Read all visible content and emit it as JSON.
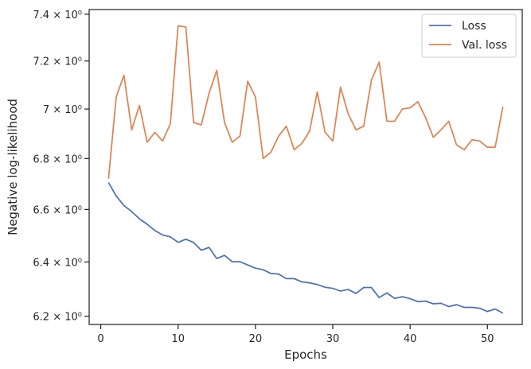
{
  "chart_data": {
    "type": "line",
    "xlabel": "Epochs",
    "ylabel": "Negative log-likelihood",
    "y_scale": "log",
    "xlim": [
      -1.5,
      54.5
    ],
    "ylim": [
      6.17,
      7.42
    ],
    "x_ticks": [
      0,
      10,
      20,
      30,
      40,
      50
    ],
    "y_ticks": [
      6.2,
      6.4,
      6.6,
      6.8,
      7.0,
      7.2,
      7.4
    ],
    "y_tick_labels": [
      "6.2 × 10⁰",
      "6.4 × 10⁰",
      "6.6 × 10⁰",
      "6.8 × 10⁰",
      "7 × 10⁰",
      "7.2 × 10⁰",
      "7.4 × 10⁰"
    ],
    "grid": false,
    "legend_position": "top-right",
    "x": [
      1,
      2,
      3,
      4,
      5,
      6,
      7,
      8,
      9,
      10,
      11,
      12,
      13,
      14,
      15,
      16,
      17,
      18,
      19,
      20,
      21,
      22,
      23,
      24,
      25,
      26,
      27,
      28,
      29,
      30,
      31,
      32,
      33,
      34,
      35,
      36,
      37,
      38,
      39,
      40,
      41,
      42,
      43,
      44,
      45,
      46,
      47,
      48,
      49,
      50,
      51,
      52
    ],
    "series": [
      {
        "name": "Loss",
        "color": "#4c72b0",
        "values": [
          6.705,
          6.652,
          6.615,
          6.592,
          6.564,
          6.543,
          6.519,
          6.502,
          6.495,
          6.474,
          6.486,
          6.474,
          6.444,
          6.455,
          6.413,
          6.425,
          6.401,
          6.401,
          6.389,
          6.377,
          6.371,
          6.357,
          6.355,
          6.338,
          6.338,
          6.326,
          6.322,
          6.316,
          6.306,
          6.302,
          6.292,
          6.298,
          6.283,
          6.305,
          6.305,
          6.268,
          6.285,
          6.265,
          6.271,
          6.264,
          6.253,
          6.255,
          6.245,
          6.247,
          6.235,
          6.242,
          6.232,
          6.232,
          6.229,
          6.217,
          6.226,
          6.211
        ]
      },
      {
        "name": "Val. loss",
        "color": "#dd8452",
        "values": [
          6.72,
          7.05,
          7.14,
          6.915,
          7.015,
          6.865,
          6.905,
          6.87,
          6.94,
          7.35,
          7.345,
          6.945,
          6.935,
          7.065,
          7.16,
          6.945,
          6.865,
          6.89,
          7.115,
          7.05,
          6.8,
          6.825,
          6.89,
          6.93,
          6.835,
          6.86,
          6.91,
          7.07,
          6.905,
          6.87,
          7.09,
          6.98,
          6.915,
          6.93,
          7.12,
          7.195,
          6.95,
          6.95,
          7.0,
          7.005,
          7.03,
          6.965,
          6.885,
          6.915,
          6.95,
          6.855,
          6.835,
          6.875,
          6.87,
          6.845,
          6.845,
          7.01
        ]
      }
    ]
  }
}
